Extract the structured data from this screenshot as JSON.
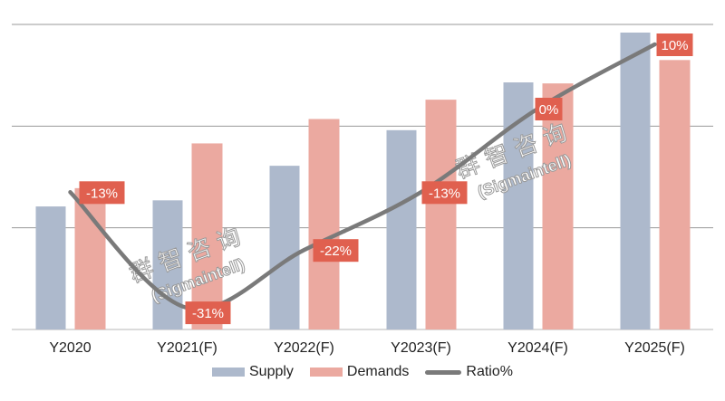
{
  "chart_data": {
    "type": "bar",
    "categories": [
      "Y2020",
      "Y2021(F)",
      "Y2022(F)",
      "Y2023(F)",
      "Y2024(F)",
      "Y2025(F)"
    ],
    "series": [
      {
        "name": "Supply",
        "type": "bar",
        "color": "#adb9cc",
        "values": [
          1.21,
          1.27,
          1.61,
          1.96,
          2.43,
          2.92
        ]
      },
      {
        "name": "Demands",
        "type": "bar",
        "color": "#eba9a0",
        "values": [
          1.39,
          1.83,
          2.07,
          2.26,
          2.42,
          2.65
        ]
      },
      {
        "name": "Ratio%",
        "type": "line",
        "color": "#7a7a7a",
        "axis": "secondary",
        "values": [
          -13,
          -31,
          -22,
          -13,
          0,
          10
        ],
        "labels": [
          "-13%",
          "-31%",
          "-22%",
          "-13%",
          "0%",
          "10%"
        ]
      }
    ],
    "ylim": [
      0,
      3
    ],
    "y_axis_labels": "none",
    "grid": true,
    "legend": "bottom",
    "label_box_color": "#e0604f"
  },
  "watermark": {
    "cn": "群智咨询",
    "en": "(Sigmaintell)"
  }
}
